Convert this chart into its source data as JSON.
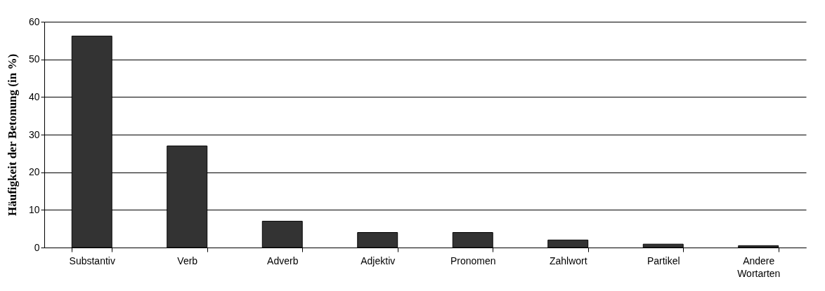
{
  "chart_data": {
    "type": "bar",
    "ylabel": "Häufigkeit der Betonung (in %)",
    "categories": [
      "Substantiv",
      "Verb",
      "Adverb",
      "Adjektiv",
      "Pronomen",
      "Zahlwort",
      "Partikel",
      "Andere Wortarten"
    ],
    "values": [
      56.2,
      27,
      7,
      4,
      4,
      2,
      0.9,
      0.5
    ],
    "color": "#333333",
    "ylim": [
      0,
      60
    ],
    "yticks": [
      0,
      10,
      20,
      30,
      40,
      50,
      60
    ],
    "grid": "y"
  }
}
